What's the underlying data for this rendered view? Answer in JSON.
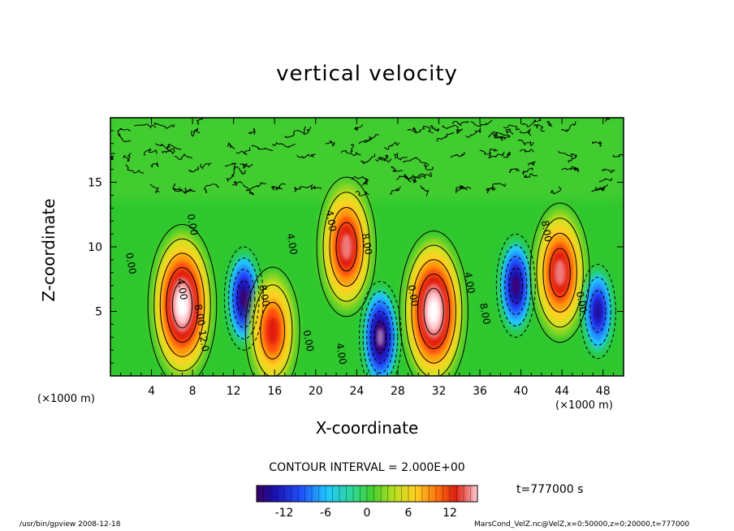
{
  "chart_data": {
    "type": "heatmap",
    "title": "vertical velocity",
    "xlabel": "X-coordinate",
    "ylabel": "Z-coordinate",
    "x_unit_label": "(×1000 m)",
    "y_unit_label": "(×1000 m)",
    "xlim": [
      0,
      50
    ],
    "ylim": [
      0,
      20
    ],
    "x_ticks": [
      4,
      8,
      12,
      16,
      20,
      24,
      28,
      32,
      36,
      40,
      44,
      48
    ],
    "y_ticks": [
      5,
      10,
      15
    ],
    "contour_interval_label": "CONTOUR INTERVAL = 2.000E+00",
    "contour_labels": [
      "0.00",
      "4.00",
      "8.00",
      "12.0",
      "0.00",
      "8.00",
      "4.00",
      "0.00",
      "4.00",
      "8.00",
      "4.00",
      "0.00",
      "4.00",
      "8.00",
      "8.00",
      "0.00"
    ],
    "colorbar": {
      "min": -16,
      "max": 16,
      "ticks": [
        -12,
        -6,
        0,
        6,
        12
      ]
    },
    "features": [
      {
        "x": 7.0,
        "z": 5.5,
        "value": 16
      },
      {
        "x": 13.0,
        "z": 6.0,
        "value": -12
      },
      {
        "x": 15.8,
        "z": 3.5,
        "value": 10
      },
      {
        "x": 23.0,
        "z": 10.0,
        "value": 12
      },
      {
        "x": 26.3,
        "z": 3.0,
        "value": -14
      },
      {
        "x": 31.5,
        "z": 5.0,
        "value": 16
      },
      {
        "x": 39.5,
        "z": 7.0,
        "value": -12
      },
      {
        "x": 43.8,
        "z": 8.0,
        "value": 12
      },
      {
        "x": 47.5,
        "z": 5.0,
        "value": -10
      }
    ]
  },
  "labels": {
    "time": "t=777000  s",
    "footer_left": "/usr/bin/gpview   2008-12-18",
    "footer_right": "MarsCond_VelZ.nc@VelZ,x=0:50000,z=0:20000,t=777000"
  },
  "colors": {
    "background_field": "#2ec82e",
    "positive_peak": "#ffffff",
    "negative_peak": "#ffffff"
  }
}
